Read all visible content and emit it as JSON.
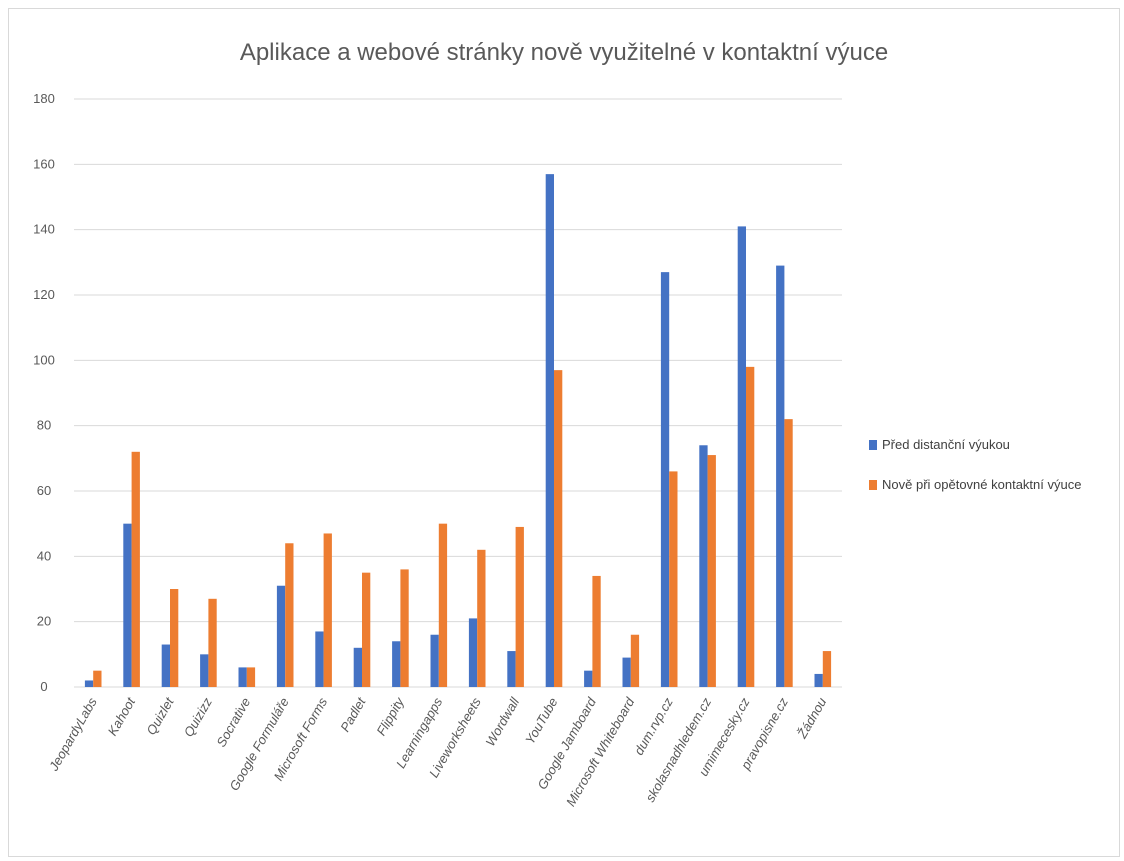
{
  "chart_data": {
    "type": "bar",
    "title": "Aplikace a webové stránky nově využitelné v kontaktní výuce",
    "xlabel": "",
    "ylabel": "",
    "ylim": [
      0,
      180
    ],
    "yticks": [
      0,
      20,
      40,
      60,
      80,
      100,
      120,
      140,
      160,
      180
    ],
    "grid": true,
    "legend_position": "right",
    "categories": [
      "JeopardyLabs",
      "Kahoot",
      "Quizlet",
      "Quizizz",
      "Socrative",
      "Google Formuláře",
      "Microsoft Forms",
      "Padlet",
      "Flippity",
      "Learningapps",
      "Liveworksheets",
      "Wordwall",
      "YouTube",
      "Google Jamboard",
      "Microsoft Whiteboard",
      "dum.rvp.cz",
      "skolasnadhledem.cz",
      "umimecesky.cz",
      "pravopisne.cz",
      "Žádnou"
    ],
    "series": [
      {
        "name": "Před distanční výukou",
        "color": "#4472C4",
        "values": [
          2,
          50,
          13,
          10,
          6,
          31,
          17,
          12,
          14,
          16,
          21,
          11,
          157,
          5,
          9,
          127,
          74,
          141,
          129,
          4
        ]
      },
      {
        "name": "Nově při opětovné kontaktní výuce",
        "color": "#ED7D31",
        "values": [
          5,
          72,
          30,
          27,
          6,
          44,
          47,
          35,
          36,
          50,
          42,
          49,
          97,
          34,
          16,
          66,
          71,
          98,
          82,
          11
        ]
      }
    ]
  }
}
